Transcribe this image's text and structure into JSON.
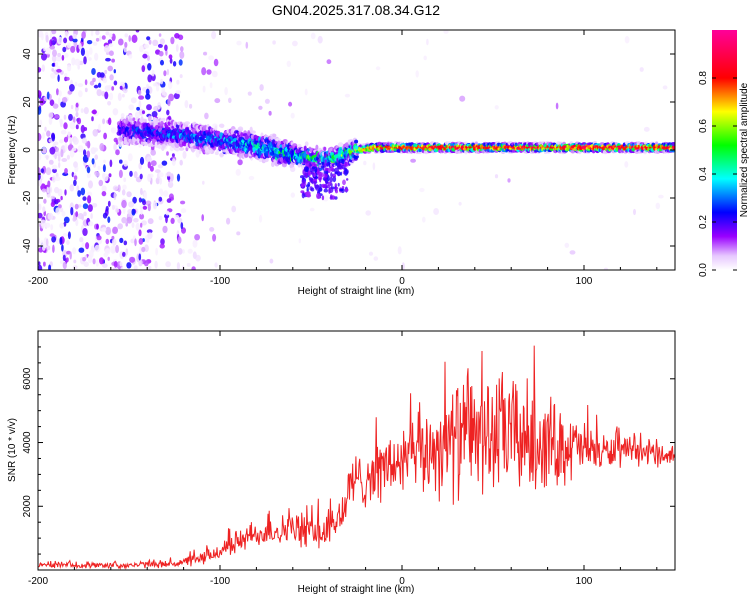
{
  "title": "GN04.2025.317.08.34.G12",
  "chart_data": [
    {
      "type": "heatmap",
      "name": "spectrogram",
      "xlabel": "Height of straight line (km)",
      "ylabel": "Frequency (Hz)",
      "xlim": [
        -200,
        150
      ],
      "ylim": [
        -50,
        50
      ],
      "xticks": [
        -200,
        -100,
        0,
        100
      ],
      "yticks": [
        -40,
        -20,
        0,
        20,
        40
      ],
      "colorbar": {
        "label": "Normalized spectral amplitude",
        "range": [
          0.0,
          1.0
        ],
        "ticks": [
          0.0,
          0.2,
          0.4,
          0.6,
          0.8
        ],
        "tick_labels": [
          "0.0",
          "0.2",
          "0.4",
          "0.6",
          "0.8"
        ],
        "colormap": [
          "#ffffff",
          "#9900ff",
          "#0000ff",
          "#00ffff",
          "#00ff00",
          "#ffff00",
          "#ff0000",
          "#ff0099"
        ]
      },
      "ridge": {
        "description_points_x": [
          -150,
          -130,
          -110,
          -90,
          -75,
          -60,
          -45,
          -35,
          -25,
          -15,
          0,
          25,
          50,
          75,
          100,
          125,
          150
        ],
        "frequency_hz": [
          8,
          7,
          5,
          3,
          1,
          -2,
          -4,
          -3,
          0,
          1,
          1,
          1,
          1,
          1,
          1,
          1,
          1
        ],
        "peak_amplitude": [
          0.3,
          0.35,
          0.4,
          0.45,
          0.5,
          0.55,
          0.6,
          0.65,
          0.75,
          0.85,
          0.9,
          0.95,
          0.95,
          0.95,
          0.95,
          0.95,
          0.95
        ]
      },
      "noise_region_x": [
        -200,
        -120
      ]
    },
    {
      "type": "line",
      "name": "snr",
      "xlabel": "Height of straight line (km)",
      "ylabel": "SNR (10 * v/v)",
      "xlim": [
        -200,
        150
      ],
      "ylim": [
        0,
        7500
      ],
      "xticks": [
        -200,
        -100,
        0,
        100
      ],
      "yticks": [
        2000,
        4000,
        6000
      ],
      "color": "#ee2222",
      "envelope": {
        "x": [
          -200,
          -150,
          -125,
          -110,
          -100,
          -90,
          -75,
          -60,
          -50,
          -40,
          -32,
          -28,
          -20,
          -10,
          0,
          10,
          20,
          30,
          40,
          50,
          60,
          70,
          80,
          90,
          100,
          110,
          125,
          150
        ],
        "center": [
          150,
          150,
          200,
          350,
          600,
          900,
          1200,
          1300,
          1200,
          1200,
          1900,
          2700,
          2900,
          3200,
          3400,
          3600,
          3900,
          4100,
          4300,
          4200,
          4300,
          4100,
          4000,
          3900,
          3800,
          3700,
          3700,
          3600
        ],
        "amplitude": [
          100,
          120,
          150,
          250,
          350,
          450,
          500,
          600,
          700,
          700,
          900,
          1000,
          1100,
          1200,
          1400,
          1500,
          1900,
          2200,
          2300,
          2300,
          2300,
          2100,
          1800,
          1400,
          1000,
          700,
          500,
          400
        ]
      }
    }
  ]
}
